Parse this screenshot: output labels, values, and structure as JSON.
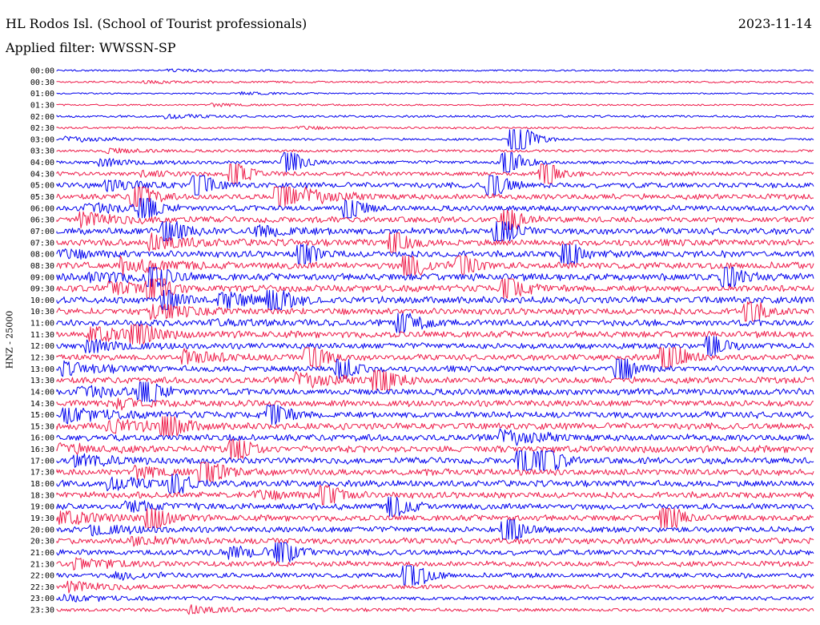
{
  "header": {
    "station": "HL Rodos Isl. (School of Tourist professionals)",
    "date": "2023-11-14",
    "filter": "Applied filter: WWSSN-SP"
  },
  "chart_data": {
    "type": "line",
    "title": "HL Rodos Isl. (School of Tourist professionals)",
    "ylabel": "HNZ - 25000",
    "row_labels": [
      "00:00",
      "00:30",
      "01:00",
      "01:30",
      "02:00",
      "02:30",
      "03:00",
      "03:30",
      "04:00",
      "04:30",
      "05:00",
      "05:30",
      "06:00",
      "06:30",
      "07:00",
      "07:30",
      "08:00",
      "08:30",
      "09:00",
      "09:30",
      "10:00",
      "10:30",
      "11:00",
      "11:30",
      "12:00",
      "12:30",
      "13:00",
      "13:30",
      "14:00",
      "14:30",
      "15:00",
      "15:30",
      "16:00",
      "16:30",
      "17:00",
      "17:30",
      "18:00",
      "18:30",
      "19:00",
      "19:30",
      "20:00",
      "20:30",
      "21:00",
      "21:30",
      "22:00",
      "22:30",
      "23:00",
      "23:30"
    ],
    "colors": [
      "#0000ee",
      "#ee1c4a"
    ],
    "noise_level": [
      0.15,
      0.18,
      0.13,
      0.16,
      0.2,
      0.2,
      0.22,
      0.25,
      0.32,
      0.38,
      0.5,
      0.52,
      0.52,
      0.55,
      0.6,
      0.6,
      0.6,
      0.62,
      0.65,
      0.62,
      0.62,
      0.6,
      0.6,
      0.6,
      0.55,
      0.55,
      0.55,
      0.6,
      0.6,
      0.6,
      0.6,
      0.6,
      0.62,
      0.62,
      0.6,
      0.6,
      0.58,
      0.58,
      0.55,
      0.55,
      0.55,
      0.55,
      0.52,
      0.5,
      0.45,
      0.4,
      0.36,
      0.32
    ],
    "events": [
      {
        "row": 6,
        "x": 0.6,
        "amp": 2.6
      },
      {
        "row": 8,
        "x": 0.3,
        "amp": 1.4
      },
      {
        "row": 8,
        "x": 0.59,
        "amp": 1.8
      },
      {
        "row": 9,
        "x": 0.23,
        "amp": 1.4
      },
      {
        "row": 9,
        "x": 0.64,
        "amp": 1.3
      },
      {
        "row": 10,
        "x": 0.18,
        "amp": 1.4
      },
      {
        "row": 10,
        "x": 0.57,
        "amp": 1.6
      },
      {
        "row": 11,
        "x": 0.1,
        "amp": 1.8
      },
      {
        "row": 11,
        "x": 0.29,
        "amp": 1.7
      },
      {
        "row": 12,
        "x": 0.11,
        "amp": 1.3
      },
      {
        "row": 12,
        "x": 0.38,
        "amp": 1.2
      },
      {
        "row": 13,
        "x": 0.59,
        "amp": 1.4
      },
      {
        "row": 14,
        "x": 0.14,
        "amp": 1.7
      },
      {
        "row": 14,
        "x": 0.58,
        "amp": 1.7
      },
      {
        "row": 15,
        "x": 0.44,
        "amp": 1.5
      },
      {
        "row": 16,
        "x": 0.32,
        "amp": 1.4
      },
      {
        "row": 16,
        "x": 0.67,
        "amp": 1.6
      },
      {
        "row": 17,
        "x": 0.46,
        "amp": 1.7
      },
      {
        "row": 17,
        "x": 0.53,
        "amp": 1.4
      },
      {
        "row": 18,
        "x": 0.12,
        "amp": 1.7
      },
      {
        "row": 18,
        "x": 0.88,
        "amp": 1.3
      },
      {
        "row": 19,
        "x": 0.12,
        "amp": 1.8
      },
      {
        "row": 19,
        "x": 0.59,
        "amp": 1.5
      },
      {
        "row": 20,
        "x": 0.14,
        "amp": 1.4
      },
      {
        "row": 20,
        "x": 0.28,
        "amp": 1.7
      },
      {
        "row": 21,
        "x": 0.91,
        "amp": 1.3
      },
      {
        "row": 22,
        "x": 0.45,
        "amp": 1.5
      },
      {
        "row": 23,
        "x": 0.1,
        "amp": 1.5
      },
      {
        "row": 24,
        "x": 0.86,
        "amp": 1.3
      },
      {
        "row": 25,
        "x": 0.33,
        "amp": 1.6
      },
      {
        "row": 25,
        "x": 0.8,
        "amp": 2.4
      },
      {
        "row": 26,
        "x": 0.37,
        "amp": 1.4
      },
      {
        "row": 26,
        "x": 0.74,
        "amp": 1.6
      },
      {
        "row": 27,
        "x": 0.42,
        "amp": 2.2
      },
      {
        "row": 28,
        "x": 0.11,
        "amp": 1.9
      },
      {
        "row": 30,
        "x": 0.28,
        "amp": 1.3
      },
      {
        "row": 31,
        "x": 0.14,
        "amp": 1.6
      },
      {
        "row": 33,
        "x": 0.23,
        "amp": 1.3
      },
      {
        "row": 34,
        "x": 0.61,
        "amp": 2.0
      },
      {
        "row": 34,
        "x": 0.64,
        "amp": 1.7
      },
      {
        "row": 35,
        "x": 0.19,
        "amp": 1.8
      },
      {
        "row": 36,
        "x": 0.15,
        "amp": 1.2
      },
      {
        "row": 37,
        "x": 0.35,
        "amp": 1.3
      },
      {
        "row": 38,
        "x": 0.44,
        "amp": 1.3
      },
      {
        "row": 39,
        "x": 0.12,
        "amp": 1.5
      },
      {
        "row": 39,
        "x": 0.8,
        "amp": 1.7
      },
      {
        "row": 40,
        "x": 0.59,
        "amp": 1.8
      },
      {
        "row": 42,
        "x": 0.29,
        "amp": 1.6
      },
      {
        "row": 44,
        "x": 0.46,
        "amp": 2.0
      }
    ]
  }
}
